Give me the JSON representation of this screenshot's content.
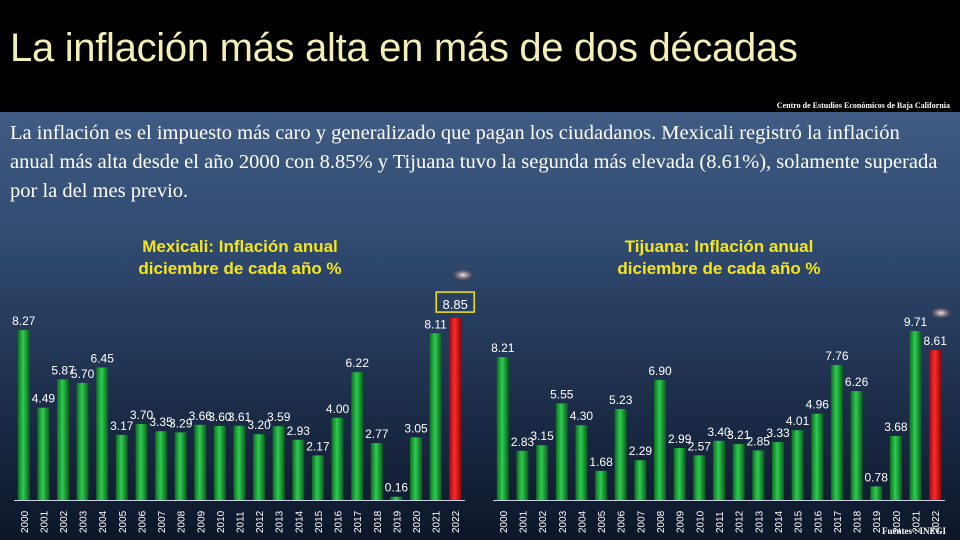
{
  "header": {
    "title": "La inflación más alta en más de dos décadas",
    "source": "Centro de Estudios Económicos de Baja California"
  },
  "intro_text": "La inflación es el impuesto más caro y generalizado que pagan los ciudadanos. Mexicali registró la inflación anual más alta desde el año 2000 con 8.85% y Tijuana tuvo la segunda más elevada (8.61%), solamente superada por la del mes previo.",
  "footer": {
    "source": "Fuentes : INEGI"
  },
  "colors": {
    "bar_green": "#1fa83a",
    "bar_red": "#e11b1b",
    "highlight_box": "#f5e51c",
    "title_yellow": "#f5e51c",
    "text_white": "#ffffff"
  },
  "chart_data": [
    {
      "type": "bar",
      "title": "Mexicali: Inflación anual diciembre de cada año %",
      "title_lines": [
        "Mexicali: Inflación anual",
        "diciembre de cada año %"
      ],
      "categories": [
        "2000",
        "2001",
        "2002",
        "2003",
        "2004",
        "2005",
        "2006",
        "2007",
        "2008",
        "2009",
        "2010",
        "2011",
        "2012",
        "2013",
        "2014",
        "2015",
        "2016",
        "2017",
        "2018",
        "2019",
        "2020",
        "2021",
        "2022"
      ],
      "values": [
        8.27,
        4.49,
        5.87,
        5.7,
        6.45,
        3.17,
        3.7,
        3.35,
        3.29,
        3.66,
        3.6,
        3.61,
        3.2,
        3.59,
        2.93,
        2.17,
        4.0,
        6.22,
        2.77,
        0.16,
        3.05,
        8.11,
        8.85
      ],
      "labels": [
        "8.27",
        "4.49",
        "5.87",
        "5.70",
        "6.45",
        "3.17",
        "3.70",
        "3.35",
        "3.29",
        "3.66",
        "3.60",
        "3.61",
        "3.20",
        "3.59",
        "2.93",
        "2.17",
        "4.00",
        "6.22",
        "2.77",
        "0.16",
        "3.05",
        "8.11",
        "8.85"
      ],
      "highlight_index": 22,
      "highlight_boxed": true,
      "ylim": [
        0,
        10
      ]
    },
    {
      "type": "bar",
      "title": "Tijuana: Inflación anual diciembre de cada año %",
      "title_lines": [
        "Tijuana: Inflación anual",
        "diciembre de cada año %"
      ],
      "categories": [
        "2000",
        "2001",
        "2002",
        "2003",
        "2004",
        "2005",
        "2006",
        "2007",
        "2008",
        "2009",
        "2010",
        "2011",
        "2012",
        "2013",
        "2014",
        "2015",
        "2016",
        "2017",
        "2018",
        "2019",
        "2020",
        "2021",
        "2022"
      ],
      "values": [
        8.21,
        2.83,
        3.15,
        5.55,
        4.3,
        1.68,
        5.23,
        2.29,
        6.9,
        2.99,
        2.57,
        3.4,
        3.21,
        2.85,
        3.33,
        4.01,
        4.96,
        7.76,
        6.26,
        0.78,
        3.68,
        9.71,
        8.61
      ],
      "labels": [
        "8.21",
        "2.83",
        "3.15",
        "5.55",
        "4.30",
        "1.68",
        "5.23",
        "2.29",
        "6.90",
        "2.99",
        "2.57",
        "3.40",
        "3.21",
        "2.85",
        "3.33",
        "4.01",
        "4.96",
        "7.76",
        "6.26",
        "0.78",
        "3.68",
        "9.71",
        "8.61"
      ],
      "highlight_index": 22,
      "highlight_boxed": false,
      "ylim": [
        0,
        10
      ]
    }
  ]
}
